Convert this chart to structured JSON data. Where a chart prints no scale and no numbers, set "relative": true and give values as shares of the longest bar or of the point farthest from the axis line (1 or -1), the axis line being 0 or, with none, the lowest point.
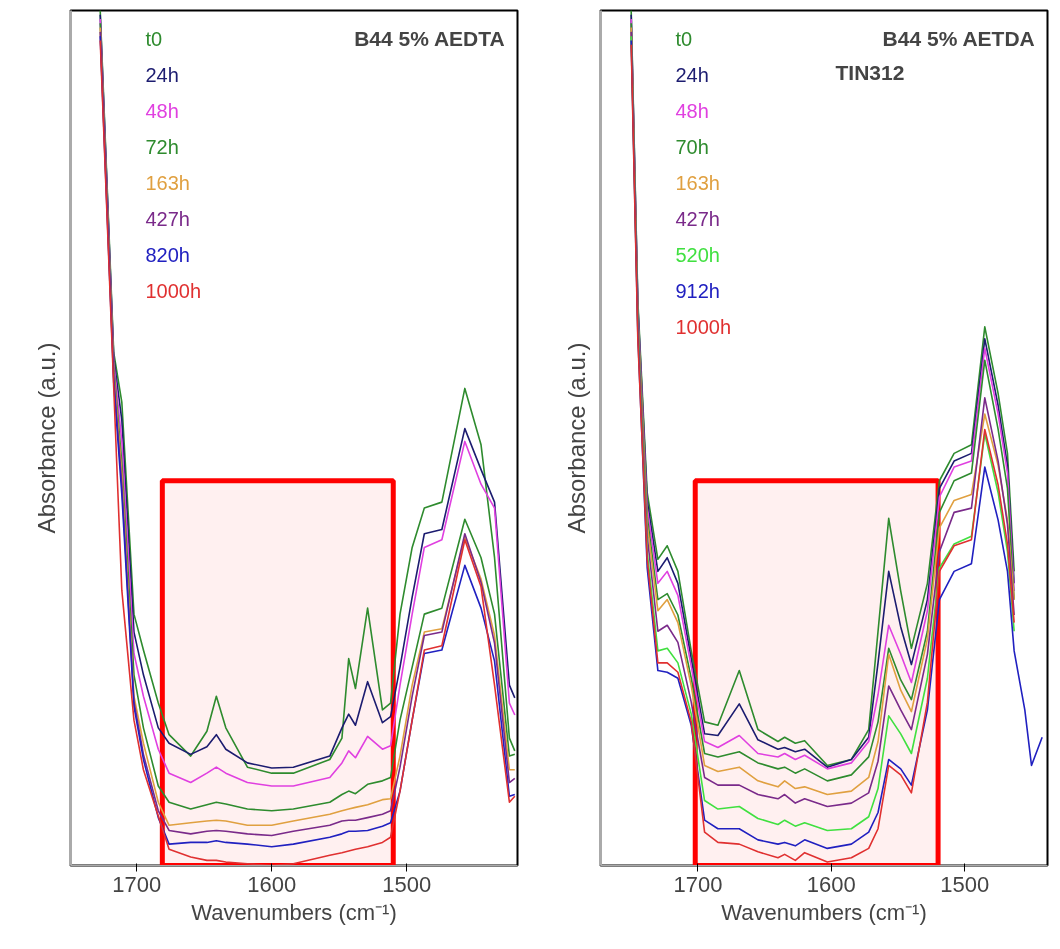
{
  "chart_data": [
    {
      "type": "line",
      "title": "B44 5% AEDTA",
      "xlabel": "Wavenumbers (cm⁻¹)",
      "ylabel": "Absorbance (a.u.)",
      "relative": true,
      "legend": "top left",
      "grid": false,
      "tick_labels": "x",
      "xlim": [
        1749,
        1418
      ],
      "xticks": [
        1700,
        1600,
        1500
      ],
      "x": [
        1727,
        1717,
        1711,
        1702,
        1695,
        1684,
        1676,
        1660,
        1648,
        1641,
        1634,
        1618,
        1600,
        1584,
        1557,
        1548,
        1543,
        1538,
        1529,
        1518,
        1512,
        1505,
        1496,
        1487,
        1474,
        1457,
        1445,
        1435,
        1424,
        1420
      ],
      "bands": [
        {
          "axis": "x",
          "from": 1681,
          "to": 1510,
          "color": "#ff0000"
        }
      ],
      "series": [
        {
          "name": "t0",
          "color": "#2e8b2e",
          "values": [
            1.0,
            0.6,
            0.542,
            0.294,
            0.252,
            0.19,
            0.153,
            0.128,
            0.157,
            0.198,
            0.161,
            0.115,
            0.108,
            0.108,
            0.124,
            0.149,
            0.242,
            0.207,
            0.301,
            0.182,
            0.19,
            0.294,
            0.372,
            0.418,
            0.425,
            0.558,
            0.492,
            0.36,
            0.149,
            0.134
          ]
        },
        {
          "name": "24h",
          "color": "#1c1c70",
          "values": [
            0.995,
            0.595,
            0.521,
            0.273,
            0.223,
            0.161,
            0.143,
            0.13,
            0.139,
            0.153,
            0.136,
            0.12,
            0.114,
            0.115,
            0.128,
            0.161,
            0.177,
            0.164,
            0.215,
            0.167,
            0.174,
            0.232,
            0.314,
            0.388,
            0.393,
            0.511,
            0.463,
            0.425,
            0.211,
            0.196
          ]
        },
        {
          "name": "48h",
          "color": "#e040e0",
          "values": [
            0.99,
            0.589,
            0.496,
            0.248,
            0.198,
            0.136,
            0.108,
            0.097,
            0.108,
            0.115,
            0.108,
            0.097,
            0.093,
            0.093,
            0.103,
            0.12,
            0.134,
            0.126,
            0.151,
            0.136,
            0.14,
            0.211,
            0.294,
            0.372,
            0.381,
            0.496,
            0.446,
            0.418,
            0.19,
            0.176
          ]
        },
        {
          "name": "72h",
          "color": "#2e8b2e",
          "values": [
            0.985,
            0.583,
            0.471,
            0.223,
            0.161,
            0.093,
            0.074,
            0.066,
            0.071,
            0.074,
            0.072,
            0.066,
            0.064,
            0.066,
            0.074,
            0.083,
            0.087,
            0.084,
            0.095,
            0.099,
            0.103,
            0.17,
            0.232,
            0.294,
            0.301,
            0.405,
            0.36,
            0.294,
            0.128,
            0.13
          ]
        },
        {
          "name": "163h",
          "color": "#e0a040",
          "values": [
            0.98,
            0.577,
            0.459,
            0.198,
            0.143,
            0.074,
            0.047,
            0.05,
            0.052,
            0.053,
            0.052,
            0.047,
            0.047,
            0.052,
            0.06,
            0.064,
            0.066,
            0.068,
            0.071,
            0.077,
            0.078,
            0.128,
            0.211,
            0.273,
            0.277,
            0.384,
            0.335,
            0.269,
            0.112,
            0.112
          ]
        },
        {
          "name": "427h",
          "color": "#7a2a8a",
          "values": [
            0.975,
            0.571,
            0.446,
            0.192,
            0.13,
            0.064,
            0.041,
            0.037,
            0.04,
            0.041,
            0.04,
            0.037,
            0.035,
            0.04,
            0.047,
            0.052,
            0.053,
            0.053,
            0.056,
            0.06,
            0.064,
            0.115,
            0.198,
            0.269,
            0.273,
            0.388,
            0.331,
            0.26,
            0.097,
            0.102
          ]
        },
        {
          "name": "820h",
          "color": "#2020c0",
          "values": [
            0.97,
            0.565,
            0.434,
            0.186,
            0.124,
            0.056,
            0.025,
            0.027,
            0.027,
            0.029,
            0.027,
            0.025,
            0.022,
            0.025,
            0.033,
            0.037,
            0.04,
            0.04,
            0.041,
            0.046,
            0.05,
            0.087,
            0.17,
            0.248,
            0.252,
            0.351,
            0.301,
            0.239,
            0.081,
            0.083
          ]
        },
        {
          "name": "1000h",
          "color": "#e03030",
          "values": [
            0.965,
            0.559,
            0.322,
            0.17,
            0.112,
            0.058,
            0.019,
            0.01,
            0.006,
            0.006,
            0.004,
            0.002,
            0.0,
            0.002,
            0.012,
            0.015,
            0.017,
            0.019,
            0.022,
            0.027,
            0.033,
            0.087,
            0.17,
            0.252,
            0.257,
            0.381,
            0.326,
            0.211,
            0.074,
            0.081
          ]
        }
      ]
    },
    {
      "type": "line",
      "title": "B44 5% AETDA",
      "subtitle": "TIN312",
      "xlabel": "Wavenumbers (cm⁻¹)",
      "ylabel": "Absorbance (a.u.)",
      "relative": true,
      "legend": "top left",
      "grid": false,
      "tick_labels": "x",
      "xlim": [
        1773,
        1438
      ],
      "xticks": [
        1700,
        1600,
        1500
      ],
      "x": [
        1750,
        1745,
        1738,
        1730,
        1723,
        1715,
        1705,
        1695,
        1685,
        1669,
        1655,
        1640,
        1635,
        1627,
        1620,
        1603,
        1585,
        1572,
        1565,
        1557,
        1548,
        1540,
        1528,
        1519,
        1508,
        1495,
        1485,
        1475,
        1468,
        1463
      ],
      "bands": [
        {
          "axis": "x",
          "from": 1702,
          "to": 1520,
          "color": "#ff0000"
        }
      ],
      "series": [
        {
          "name": "t0",
          "color": "#2e8b2e",
          "values": [
            1.0,
            0.66,
            0.436,
            0.358,
            0.374,
            0.344,
            0.251,
            0.168,
            0.164,
            0.228,
            0.159,
            0.145,
            0.15,
            0.143,
            0.146,
            0.117,
            0.124,
            0.159,
            0.274,
            0.406,
            0.321,
            0.254,
            0.33,
            0.45,
            0.482,
            0.492,
            0.63,
            0.552,
            0.482,
            0.344
          ]
        },
        {
          "name": "24h",
          "color": "#1c1c70",
          "values": [
            0.995,
            0.655,
            0.427,
            0.344,
            0.36,
            0.33,
            0.242,
            0.154,
            0.152,
            0.189,
            0.147,
            0.136,
            0.138,
            0.133,
            0.136,
            0.115,
            0.124,
            0.15,
            0.237,
            0.344,
            0.279,
            0.235,
            0.311,
            0.441,
            0.473,
            0.482,
            0.616,
            0.538,
            0.468,
            0.33
          ]
        },
        {
          "name": "48h",
          "color": "#e040e0",
          "values": [
            0.99,
            0.65,
            0.418,
            0.33,
            0.344,
            0.316,
            0.233,
            0.145,
            0.138,
            0.152,
            0.131,
            0.127,
            0.131,
            0.124,
            0.129,
            0.113,
            0.12,
            0.145,
            0.2,
            0.281,
            0.247,
            0.214,
            0.298,
            0.431,
            0.466,
            0.473,
            0.605,
            0.528,
            0.459,
            0.321
          ]
        },
        {
          "name": "70h",
          "color": "#2e8b2e",
          "values": [
            0.985,
            0.644,
            0.408,
            0.311,
            0.318,
            0.293,
            0.219,
            0.131,
            0.127,
            0.133,
            0.12,
            0.113,
            0.115,
            0.108,
            0.113,
            0.099,
            0.106,
            0.127,
            0.168,
            0.254,
            0.217,
            0.194,
            0.274,
            0.413,
            0.45,
            0.459,
            0.591,
            0.51,
            0.441,
            0.311
          ]
        },
        {
          "name": "163h",
          "color": "#e0a040",
          "values": [
            0.98,
            0.638,
            0.399,
            0.298,
            0.311,
            0.284,
            0.21,
            0.117,
            0.11,
            0.115,
            0.099,
            0.092,
            0.099,
            0.09,
            0.092,
            0.083,
            0.087,
            0.103,
            0.145,
            0.247,
            0.205,
            0.18,
            0.265,
            0.395,
            0.427,
            0.434,
            0.528,
            0.468,
            0.404,
            0.311
          ]
        },
        {
          "name": "427h",
          "color": "#7a2a8a",
          "values": [
            0.975,
            0.632,
            0.385,
            0.274,
            0.281,
            0.261,
            0.191,
            0.103,
            0.094,
            0.094,
            0.083,
            0.078,
            0.083,
            0.073,
            0.078,
            0.069,
            0.073,
            0.085,
            0.122,
            0.21,
            0.182,
            0.159,
            0.247,
            0.367,
            0.413,
            0.418,
            0.547,
            0.473,
            0.399,
            0.293
          ]
        },
        {
          "name": "520h",
          "color": "#40e040",
          "values": [
            0.97,
            0.626,
            0.367,
            0.251,
            0.254,
            0.237,
            0.177,
            0.076,
            0.066,
            0.069,
            0.055,
            0.048,
            0.053,
            0.046,
            0.05,
            0.041,
            0.043,
            0.057,
            0.09,
            0.175,
            0.154,
            0.131,
            0.219,
            0.348,
            0.376,
            0.385,
            0.505,
            0.436,
            0.367,
            0.274
          ]
        },
        {
          "name": "912h",
          "color": "#2020c0",
          "x": [
            1750,
            1745,
            1738,
            1730,
            1723,
            1715,
            1705,
            1695,
            1685,
            1669,
            1655,
            1640,
            1635,
            1627,
            1620,
            1603,
            1585,
            1572,
            1565,
            1557,
            1548,
            1540,
            1528,
            1519,
            1508,
            1495,
            1485,
            1475,
            1468,
            1463,
            1455,
            1450,
            1442
          ],
          "values": [
            0.965,
            0.62,
            0.348,
            0.228,
            0.226,
            0.219,
            0.164,
            0.053,
            0.043,
            0.043,
            0.03,
            0.025,
            0.027,
            0.023,
            0.03,
            0.02,
            0.025,
            0.039,
            0.062,
            0.124,
            0.113,
            0.094,
            0.182,
            0.311,
            0.344,
            0.353,
            0.466,
            0.404,
            0.344,
            0.251,
            0.182,
            0.117,
            0.15
          ]
        },
        {
          "name": "1000h",
          "color": "#e03030",
          "values": [
            0.96,
            0.614,
            0.358,
            0.237,
            0.237,
            0.226,
            0.168,
            0.039,
            0.027,
            0.025,
            0.016,
            0.009,
            0.013,
            0.006,
            0.015,
            0.004,
            0.009,
            0.02,
            0.043,
            0.117,
            0.106,
            0.085,
            0.191,
            0.344,
            0.374,
            0.381,
            0.51,
            0.445,
            0.376,
            0.284
          ]
        }
      ]
    }
  ]
}
